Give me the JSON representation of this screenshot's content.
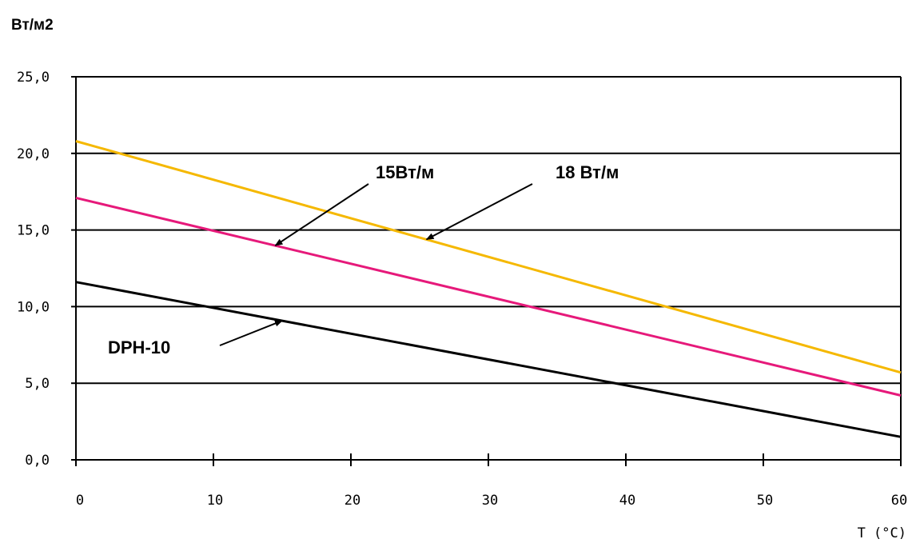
{
  "chart_data": {
    "type": "line",
    "ylabel": "Вт/м2",
    "xlabel": "T (°C)",
    "xlim": [
      0,
      60
    ],
    "ylim": [
      0,
      25
    ],
    "x_ticks": [
      "0",
      "10",
      "20",
      "30",
      "40",
      "50",
      "60"
    ],
    "y_ticks": [
      "0,0",
      "5,0",
      "10,0",
      "15,0",
      "20,0",
      "25,0"
    ],
    "grid": "horizontal",
    "series": [
      {
        "name": "18 Вт/м",
        "color": "#f5b800",
        "x": [
          0,
          60
        ],
        "values": [
          20.8,
          5.7
        ]
      },
      {
        "name": "15Вт/м",
        "color": "#e6197a",
        "x": [
          0,
          60
        ],
        "values": [
          17.1,
          4.2
        ]
      },
      {
        "name": "DPH-10",
        "color": "#000000",
        "x": [
          0,
          60
        ],
        "values": [
          11.6,
          1.5
        ]
      }
    ],
    "annotations": [
      {
        "text": "15Вт/м",
        "target_series": "15Вт/м",
        "target_x": 14.5
      },
      {
        "text": "18 Вт/м",
        "target_series": "18 Вт/м",
        "target_x": 25.5
      },
      {
        "text": "DPH-10",
        "target_series": "DPH-10",
        "target_x": 15
      }
    ]
  }
}
